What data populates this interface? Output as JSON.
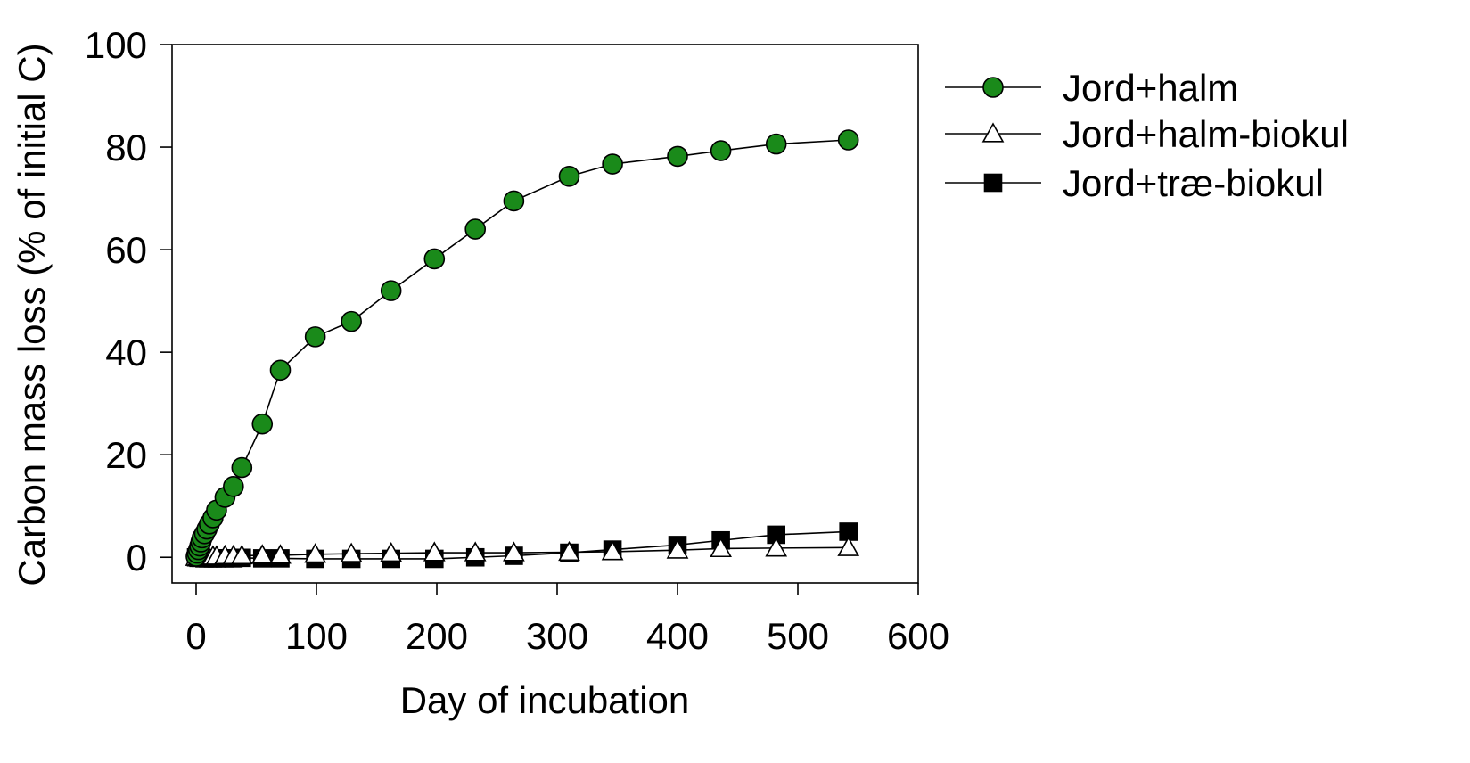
{
  "chart_data": {
    "type": "line",
    "title": "",
    "xlabel": "Day of incubation",
    "ylabel": "Carbon mass loss (% of initial C)",
    "xlim": [
      -20,
      600
    ],
    "ylim": [
      -5,
      100
    ],
    "xticks": [
      0,
      100,
      200,
      300,
      400,
      500,
      600
    ],
    "yticks": [
      0,
      20,
      40,
      60,
      80,
      100
    ],
    "xtick_labels": [
      "0",
      "100",
      "200",
      "300",
      "400",
      "500",
      "600"
    ],
    "ytick_labels": [
      "0",
      "20",
      "40",
      "60",
      "80",
      "100"
    ],
    "grid": false,
    "legend_position": "right",
    "series": [
      {
        "name": "Jord+halm",
        "marker": "circle",
        "marker_fill": "#1a8a1a",
        "x": [
          0,
          1,
          2,
          3,
          4,
          5,
          7,
          9,
          11,
          14,
          17,
          24,
          31,
          38,
          55,
          70,
          99,
          129,
          162,
          198,
          232,
          264,
          310,
          346,
          400,
          436,
          482,
          542
        ],
        "y": [
          0.2,
          0.8,
          1.5,
          2.2,
          3.0,
          3.8,
          4.6,
          5.5,
          6.5,
          7.7,
          9.2,
          11.7,
          13.8,
          17.5,
          26.0,
          36.5,
          43.0,
          46.0,
          52.0,
          58.2,
          64.0,
          69.5,
          74.3,
          76.7,
          78.2,
          79.3,
          80.6,
          81.4
        ]
      },
      {
        "name": "Jord+halm-biokul",
        "marker": "triangle",
        "marker_fill": "#ffffff",
        "x": [
          0,
          2,
          4,
          7,
          10,
          14,
          17,
          24,
          31,
          38,
          55,
          70,
          99,
          129,
          162,
          198,
          232,
          264,
          310,
          346,
          400,
          436,
          482,
          542
        ],
        "y": [
          0.0,
          0.1,
          0.1,
          0.2,
          0.2,
          0.2,
          0.2,
          0.3,
          0.3,
          0.3,
          0.4,
          0.4,
          0.6,
          0.7,
          0.8,
          0.9,
          0.9,
          0.9,
          1.0,
          1.1,
          1.4,
          1.7,
          1.8,
          1.9
        ]
      },
      {
        "name": "Jord+træ-biokul",
        "marker": "square",
        "marker_fill": "#000000",
        "x": [
          0,
          2,
          4,
          7,
          10,
          14,
          17,
          24,
          31,
          38,
          55,
          70,
          99,
          129,
          162,
          198,
          232,
          264,
          310,
          346,
          400,
          436,
          482,
          542
        ],
        "y": [
          0.0,
          -0.1,
          -0.1,
          -0.2,
          -0.2,
          -0.2,
          -0.2,
          -0.2,
          -0.2,
          -0.1,
          -0.2,
          -0.2,
          -0.3,
          -0.3,
          -0.3,
          -0.3,
          0.0,
          0.3,
          0.9,
          1.5,
          2.4,
          3.3,
          4.4,
          5.0
        ]
      }
    ]
  }
}
